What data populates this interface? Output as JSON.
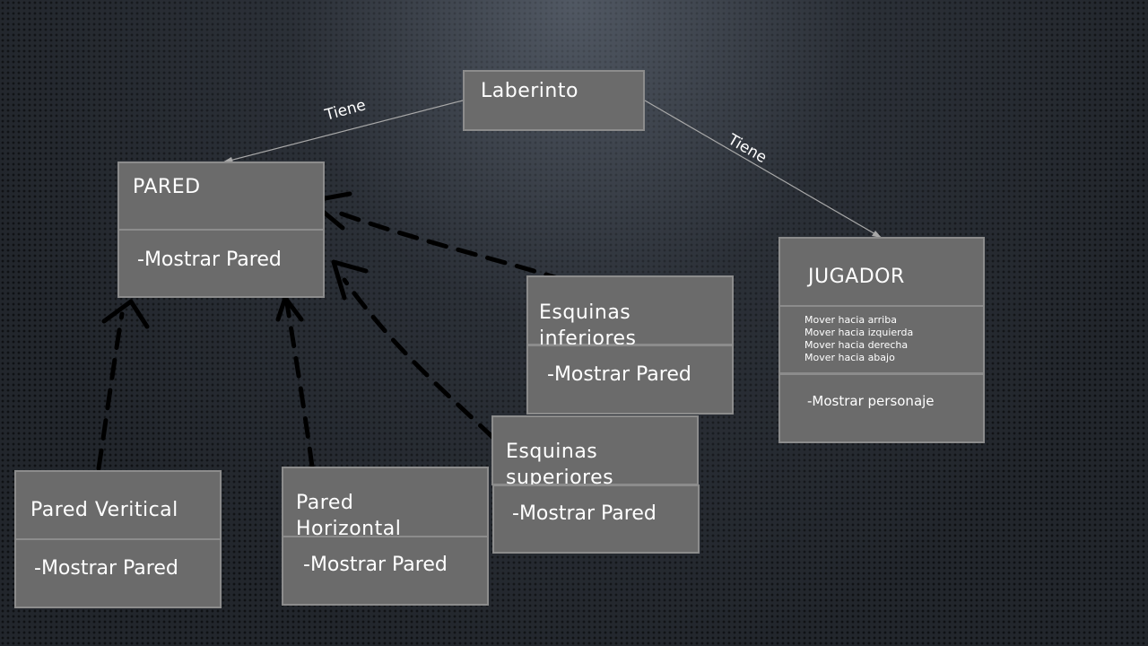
{
  "diagram": {
    "relations": {
      "left_label": "Tiene",
      "right_label": "Tiene"
    },
    "laberinto": {
      "title": "Laberinto"
    },
    "pared": {
      "title": "PARED",
      "method": "-Mostrar Pared"
    },
    "jugador": {
      "title": "JUGADOR",
      "attributes": [
        "Mover hacia arriba",
        "Mover hacia izquierda",
        "Mover hacia derecha",
        "Mover hacia abajo"
      ],
      "method": "-Mostrar personaje"
    },
    "esquinas_inferiores": {
      "title": "Esquinas inferiores",
      "method": "-Mostrar Pared"
    },
    "esquinas_superiores": {
      "title": "Esquinas superiores",
      "method": "-Mostrar Pared"
    },
    "pared_vertical": {
      "title": "Pared Veritical",
      "method": "-Mostrar Pared"
    },
    "pared_horizontal": {
      "title": "Pared Horizontal",
      "method": "-Mostrar Pared"
    }
  }
}
